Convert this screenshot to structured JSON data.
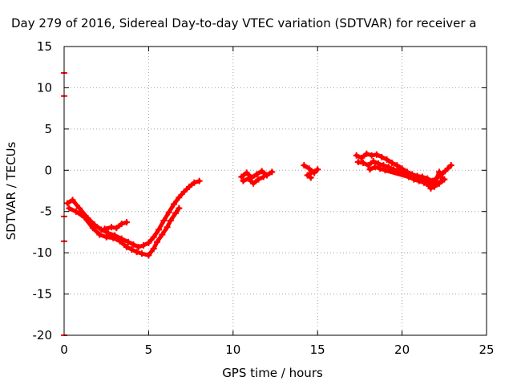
{
  "chart_data": {
    "type": "scatter",
    "title": "Day 279 of 2016, Sidereal Day-to-day VTEC variation (SDTVAR) for receiver a",
    "xlabel": "GPS time / hours",
    "ylabel": "SDTVAR / TECUs",
    "xlim": [
      0,
      25
    ],
    "ylim": [
      -20,
      15
    ],
    "xticks": [
      "0",
      "5",
      "10",
      "15",
      "20",
      "25"
    ],
    "yticks": [
      "-20",
      "-15",
      "-10",
      "-5",
      "0",
      "5",
      "10",
      "15"
    ],
    "grid": true,
    "legend": "none",
    "series": [
      {
        "color": "#ff0000",
        "segments": [
          [
            [
              0.2,
              -4.0
            ],
            [
              0.5,
              -3.6
            ],
            [
              0.9,
              -4.6
            ],
            [
              1.4,
              -5.8
            ],
            [
              1.8,
              -6.6
            ],
            [
              2.2,
              -7.2
            ],
            [
              2.6,
              -7.6
            ],
            [
              3.0,
              -7.9
            ],
            [
              3.4,
              -8.3
            ],
            [
              3.8,
              -8.7
            ],
            [
              4.1,
              -9.0
            ],
            [
              4.4,
              -9.3
            ],
            [
              4.7,
              -9.1
            ],
            [
              5.0,
              -8.8
            ],
            [
              5.3,
              -8.1
            ],
            [
              5.6,
              -7.2
            ],
            [
              5.9,
              -6.1
            ],
            [
              6.2,
              -5.1
            ],
            [
              6.5,
              -4.1
            ],
            [
              6.8,
              -3.3
            ],
            [
              7.1,
              -2.6
            ],
            [
              7.4,
              -2.0
            ],
            [
              7.7,
              -1.5
            ],
            [
              8.0,
              -1.3
            ]
          ],
          [
            [
              0.3,
              -4.6
            ],
            [
              0.7,
              -5.0
            ],
            [
              1.2,
              -5.7
            ],
            [
              1.7,
              -7.0
            ],
            [
              2.1,
              -7.8
            ],
            [
              2.5,
              -8.1
            ],
            [
              2.9,
              -8.2
            ],
            [
              3.3,
              -8.6
            ],
            [
              3.7,
              -9.3
            ],
            [
              4.0,
              -9.6
            ],
            [
              4.3,
              -9.9
            ],
            [
              4.6,
              -10.1
            ],
            [
              5.0,
              -10.3
            ],
            [
              5.3,
              -9.5
            ],
            [
              5.5,
              -8.7
            ],
            [
              5.8,
              -7.8
            ],
            [
              6.1,
              -6.9
            ],
            [
              6.3,
              -6.1
            ],
            [
              6.6,
              -5.2
            ],
            [
              6.8,
              -4.6
            ]
          ],
          [
            [
              2.4,
              -7.1
            ],
            [
              2.8,
              -6.9
            ],
            [
              3.1,
              -7.0
            ],
            [
              3.4,
              -6.5
            ],
            [
              3.7,
              -6.3
            ]
          ],
          [
            [
              10.5,
              -0.8
            ],
            [
              10.8,
              -0.3
            ],
            [
              11.1,
              -0.9
            ],
            [
              11.4,
              -0.5
            ],
            [
              11.7,
              -0.1
            ],
            [
              12.0,
              -0.6
            ],
            [
              12.3,
              -0.2
            ]
          ],
          [
            [
              10.6,
              -1.3
            ],
            [
              10.9,
              -1.0
            ],
            [
              11.2,
              -1.6
            ],
            [
              11.5,
              -1.1
            ],
            [
              11.8,
              -0.8
            ]
          ],
          [
            [
              14.2,
              0.6
            ],
            [
              14.5,
              0.2
            ],
            [
              14.8,
              -0.3
            ],
            [
              15.0,
              0.1
            ],
            [
              14.4,
              -0.6
            ],
            [
              14.6,
              -0.9
            ]
          ],
          [
            [
              17.3,
              1.8
            ],
            [
              17.6,
              1.5
            ],
            [
              17.9,
              2.0
            ],
            [
              18.2,
              1.8
            ],
            [
              18.5,
              1.9
            ],
            [
              18.8,
              1.6
            ],
            [
              19.1,
              1.3
            ],
            [
              19.4,
              0.9
            ],
            [
              19.7,
              0.6
            ],
            [
              20.0,
              0.2
            ],
            [
              20.3,
              -0.2
            ],
            [
              20.6,
              -0.5
            ],
            [
              20.9,
              -0.7
            ],
            [
              21.2,
              -0.8
            ],
            [
              21.5,
              -1.0
            ],
            [
              21.8,
              -1.3
            ],
            [
              22.1,
              -0.9
            ],
            [
              22.4,
              -0.4
            ],
            [
              22.7,
              0.2
            ],
            [
              22.9,
              0.6
            ]
          ],
          [
            [
              17.4,
              1.0
            ],
            [
              17.7,
              0.9
            ],
            [
              18.0,
              0.6
            ],
            [
              18.3,
              1.1
            ],
            [
              18.6,
              0.8
            ],
            [
              18.9,
              0.6
            ],
            [
              19.2,
              0.4
            ],
            [
              19.5,
              0.1
            ],
            [
              19.8,
              -0.1
            ],
            [
              20.1,
              -0.3
            ],
            [
              20.4,
              -0.8
            ],
            [
              20.7,
              -1.1
            ],
            [
              21.0,
              -1.3
            ],
            [
              21.3,
              -1.5
            ],
            [
              21.6,
              -1.9
            ],
            [
              21.9,
              -2.0
            ],
            [
              22.2,
              -1.6
            ],
            [
              22.5,
              -1.1
            ]
          ],
          [
            [
              18.1,
              0.1
            ],
            [
              18.4,
              0.4
            ],
            [
              18.7,
              0.2
            ],
            [
              19.0,
              0.0
            ],
            [
              21.9,
              -1.7
            ],
            [
              22.2,
              -0.2
            ],
            [
              22.4,
              -1.2
            ],
            [
              21.7,
              -2.2
            ]
          ]
        ]
      }
    ],
    "markers": [
      {
        "x": 0,
        "y": 11.8
      },
      {
        "x": 0,
        "y": 9.0
      },
      {
        "x": 0,
        "y": -5.6
      },
      {
        "x": 0,
        "y": -8.6
      },
      {
        "x": 0,
        "y": -20.0
      }
    ]
  }
}
